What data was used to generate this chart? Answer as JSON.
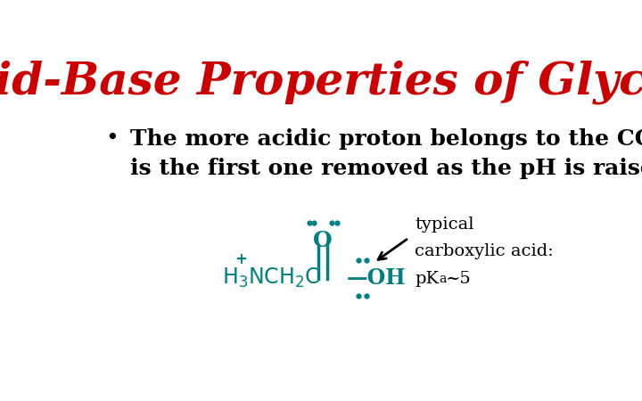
{
  "title": "Acid-Base Properties of Glycine",
  "title_color": "#cc0000",
  "title_fontsize": 36,
  "background_color": "#ffffff",
  "bullet_text_line1": "The more acidic proton belongs to the COOH group.  It",
  "bullet_text_line2": "is the first one removed as the pH is raised.",
  "bullet_fontsize": 18,
  "teal_color": "#008080",
  "black_color": "#000000",
  "annotation_line1": "typical",
  "annotation_line2": "carboxylic acid:",
  "annotation_line3": "pK",
  "annotation_sub": "a",
  "annotation_end": "~5"
}
